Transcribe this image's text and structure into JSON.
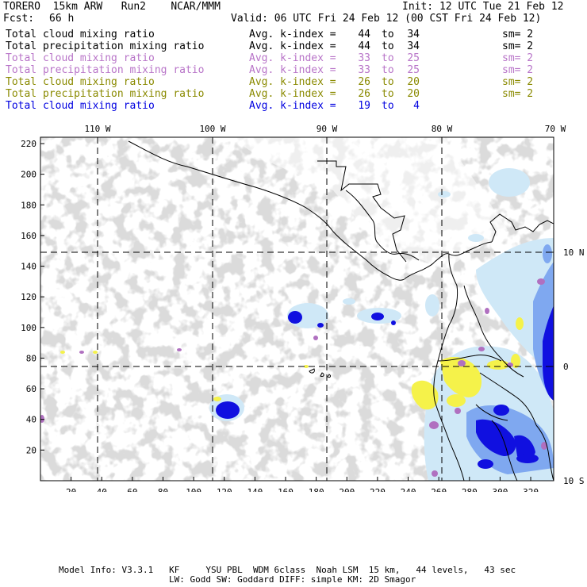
{
  "header": {
    "title_left": "TORERO  15km ARW   Run2    NCAR/MMM",
    "init": "Init: 12 UTC Tue 21 Feb 12",
    "fcst_label": "Fcst:",
    "fcst_value": "66 h",
    "valid": "Valid: 06 UTC Fri 24 Feb 12 (00 CST Fri 24 Feb 12)"
  },
  "fields": [
    {
      "name": "Total cloud mixing ratio",
      "kindex_label": "Avg. k-index =",
      "from": "44",
      "to_word": "to",
      "to": "34",
      "smooth": "sm= 2",
      "color": "#000000"
    },
    {
      "name": "Total precipitation mixing ratio",
      "kindex_label": "Avg. k-index =",
      "from": "44",
      "to_word": "to",
      "to": "34",
      "smooth": "sm= 2",
      "color": "#000000"
    },
    {
      "name": "Total cloud mixing ratio",
      "kindex_label": "Avg. k-index =",
      "from": "33",
      "to_word": "to",
      "to": "25",
      "smooth": "sm= 2",
      "color": "#b874c8"
    },
    {
      "name": "Total precipitation mixing ratio",
      "kindex_label": "Avg. k-index =",
      "from": "33",
      "to_word": "to",
      "to": "25",
      "smooth": "sm= 2",
      "color": "#b874c8"
    },
    {
      "name": "Total cloud mixing ratio",
      "kindex_label": "Avg. k-index =",
      "from": "26",
      "to_word": "to",
      "to": "20",
      "smooth": "sm= 2",
      "color": "#8a8a00"
    },
    {
      "name": "Total precipitation mixing ratio",
      "kindex_label": "Avg. k-index =",
      "from": "26",
      "to_word": "to",
      "to": "20",
      "smooth": "sm= 2",
      "color": "#8a8a00"
    },
    {
      "name": "Total cloud mixing ratio",
      "kindex_label": "Avg. k-index =",
      "from": "19",
      "to_word": "to",
      "to": "4",
      "smooth": "",
      "color": "#0000e0"
    }
  ],
  "map": {
    "top_lon_labels": [
      "110 W",
      "100 W",
      "90 W",
      "80 W",
      "70 W"
    ],
    "right_lat_labels": [
      "10 N",
      "0",
      "10 S"
    ],
    "left_grid_labels": [
      "220",
      "200",
      "180",
      "160",
      "140",
      "120",
      "100",
      "80",
      "60",
      "40",
      "20"
    ],
    "bottom_grid_labels": [
      "20",
      "40",
      "60",
      "80",
      "100",
      "120",
      "140",
      "160",
      "180",
      "200",
      "220",
      "240",
      "260",
      "280",
      "300",
      "320"
    ],
    "colors": {
      "cloud_gray": "#b4b4b4",
      "light_blue": "#cfe8f7",
      "mid_blue": "#7fa8f0",
      "deep_blue": "#1010e0",
      "yellow": "#f5f24a",
      "purple": "#b070c0",
      "coast": "#000000"
    }
  },
  "footer": {
    "line1": "Model Info: V3.3.1   KF     YSU PBL  WDM 6class  Noah LSM  15 km,   44 levels,   43 sec",
    "line2": "LW: Godd SW: Goddard DIFF: simple KM: 2D Smagor"
  }
}
